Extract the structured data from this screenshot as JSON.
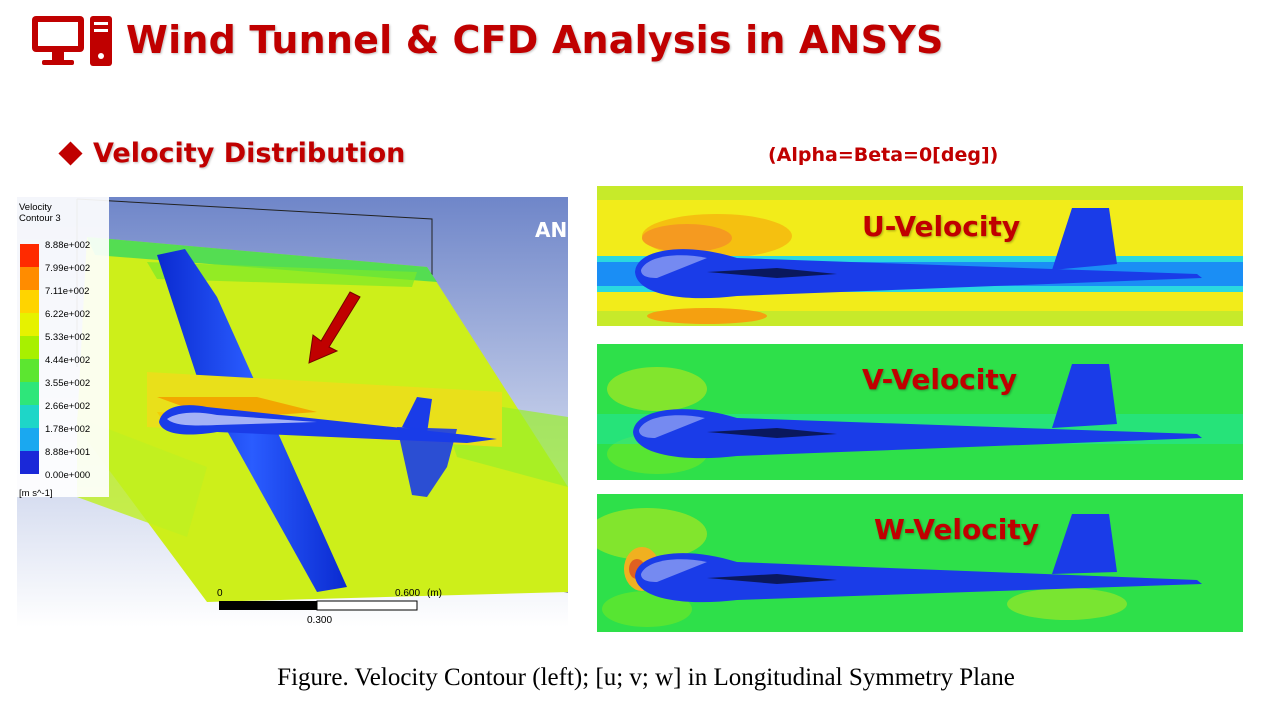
{
  "header": {
    "icon": "computer-desktop-icon",
    "title": "Wind Tunnel & CFD Analysis in ANSYS",
    "accent_color": "#c00000"
  },
  "section": {
    "bullet": "diamond",
    "label": "Velocity Distribution"
  },
  "conditions": "(Alpha=Beta=0[deg])",
  "left_figure": {
    "watermark": "ANSYS",
    "legend": {
      "title_line1": "Velocity",
      "title_line2": "Contour 3",
      "ticks": [
        "8.88e+002",
        "7.99e+002",
        "7.11e+002",
        "6.22e+002",
        "5.33e+002",
        "4.44e+002",
        "3.55e+002",
        "2.66e+002",
        "1.78e+002",
        "8.88e+001",
        "0.00e+000"
      ],
      "colors": [
        "#ff2a00",
        "#ff8c00",
        "#ffd400",
        "#e6f200",
        "#a8f000",
        "#5ce630",
        "#2ee67a",
        "#1ed6c8",
        "#1aa8f0",
        "#1a5cf0",
        "#1a28d8"
      ],
      "unit": "[m s^-1]"
    },
    "scale_bar": {
      "start": "0",
      "end": "0.600",
      "unit": "(m)",
      "mid": "0.300"
    }
  },
  "panels": [
    {
      "label": "U-Velocity"
    },
    {
      "label": "V-Velocity"
    },
    {
      "label": "W-Velocity"
    }
  ],
  "caption": "Figure. Velocity Contour (left); [u; v; w] in Longitudinal Symmetry Plane"
}
